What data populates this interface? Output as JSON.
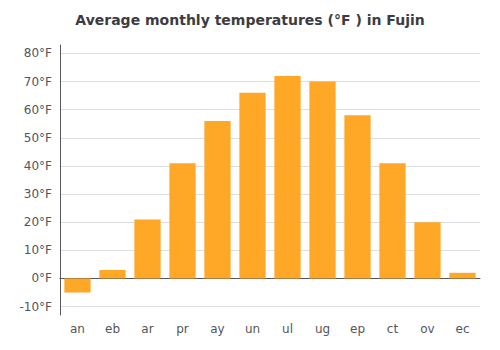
{
  "chart_data": {
    "type": "bar",
    "title": "Average monthly temperatures (°F ) in Fujin",
    "categories": [
      "an",
      "eb",
      "ar",
      "pr",
      "ay",
      "un",
      "ul",
      "ug",
      "ep",
      "ct",
      "ov",
      "ec"
    ],
    "values": [
      -5,
      3,
      21,
      41,
      56,
      66,
      72,
      70,
      58,
      41,
      20,
      2
    ],
    "color": "#FFA726",
    "ylim": [
      -13,
      83
    ],
    "yticks": [
      {
        "value": -10,
        "label": "-10°F"
      },
      {
        "value": 0,
        "label": "0°F"
      },
      {
        "value": 10,
        "label": "10°F"
      },
      {
        "value": 20,
        "label": "20°F"
      },
      {
        "value": 30,
        "label": "30°F"
      },
      {
        "value": 40,
        "label": "40°F"
      },
      {
        "value": 50,
        "label": "50°F"
      },
      {
        "value": 60,
        "label": "60°F"
      },
      {
        "value": 70,
        "label": "70°F"
      },
      {
        "value": 80,
        "label": "80°F"
      }
    ],
    "grid": true
  }
}
